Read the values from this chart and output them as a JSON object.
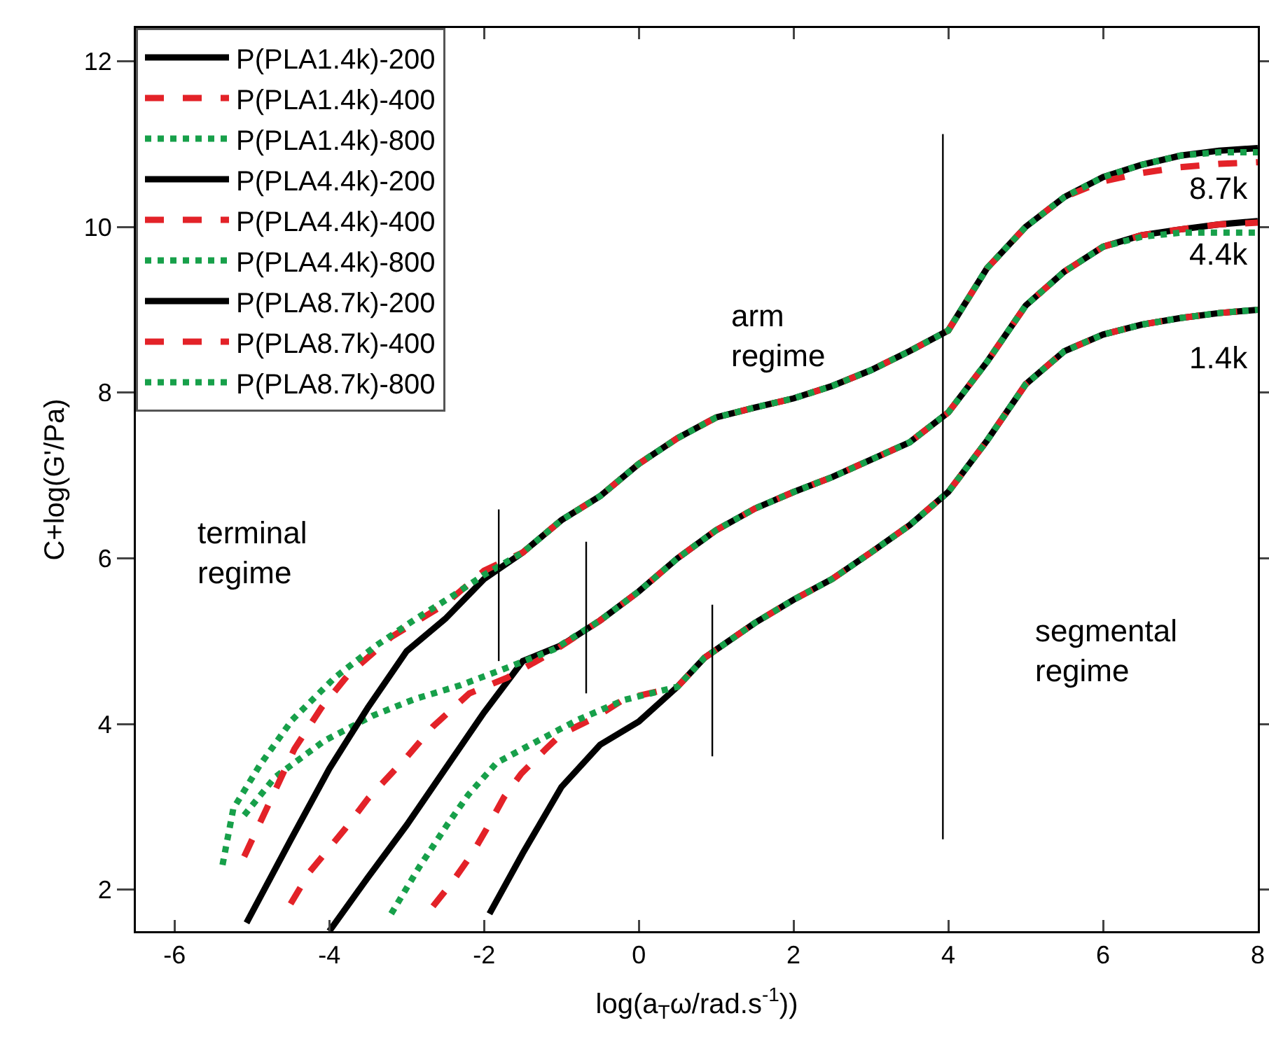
{
  "chart_data": {
    "type": "line",
    "xlabel": "log(a$_{T}$ω/rad.s$^{-1}$))",
    "ylabel": "C+log(G'/Pa)",
    "xlim": [
      -6.5,
      8
    ],
    "ylim": [
      1.5,
      12.4
    ],
    "xticks": [
      -6,
      -4,
      -2,
      0,
      2,
      4,
      6,
      8
    ],
    "yticks": [
      2,
      4,
      6,
      8,
      10,
      12
    ],
    "legend": "top left",
    "series": [
      {
        "name": "P(PLA1.4k)-200",
        "color": "#000000",
        "line_style": "solid",
        "x": [
          -1.93,
          -1.5,
          -1,
          -0.5,
          0,
          0.5,
          0.85,
          1.5,
          2,
          2.5,
          3,
          3.5,
          4,
          4.5,
          5,
          5.5,
          6,
          6.5,
          7,
          7.5,
          8
        ],
        "values": [
          1.71,
          2.44,
          3.24,
          3.75,
          4.03,
          4.45,
          4.8,
          5.22,
          5.5,
          5.75,
          6.07,
          6.4,
          6.8,
          7.42,
          8.1,
          8.5,
          8.7,
          8.82,
          8.9,
          8.96,
          9.0
        ]
      },
      {
        "name": "P(PLA1.4k)-400",
        "color": "#e32228",
        "line_style": "dashed",
        "x": [
          -2.66,
          -2.42,
          -2.15,
          -1.97,
          -1.74,
          -1.52,
          -1.2,
          -1,
          -0.56,
          -0.19,
          0.5,
          0.85,
          1.5,
          2,
          2.5,
          3,
          3.5,
          4,
          4.5,
          5,
          5.5,
          6,
          6.5,
          7,
          7.5,
          8
        ],
        "values": [
          1.8,
          2.08,
          2.44,
          2.73,
          3.12,
          3.4,
          3.7,
          3.88,
          4.08,
          4.3,
          4.45,
          4.8,
          5.22,
          5.5,
          5.75,
          6.07,
          6.4,
          6.8,
          7.42,
          8.1,
          8.5,
          8.7,
          8.82,
          8.9,
          8.96,
          9.0
        ]
      },
      {
        "name": "P(PLA1.4k)-800",
        "color": "#17a04a",
        "line_style": "dotted",
        "x": [
          -3.2,
          -2.84,
          -2.48,
          -2.2,
          -1.84,
          -1.34,
          -0.79,
          -0.19,
          0.5,
          0.85,
          1.5,
          2,
          2.5,
          3,
          3.5,
          4,
          4.5,
          5,
          5.5,
          6,
          6.5,
          7,
          7.5,
          8
        ],
        "values": [
          1.71,
          2.27,
          2.78,
          3.15,
          3.53,
          3.78,
          4.05,
          4.29,
          4.45,
          4.8,
          5.22,
          5.5,
          5.75,
          6.07,
          6.4,
          6.8,
          7.42,
          8.1,
          8.5,
          8.7,
          8.82,
          8.9,
          8.96,
          9.0
        ]
      },
      {
        "name": "P(PLA4.4k)-200",
        "color": "#000000",
        "line_style": "solid",
        "x": [
          -4,
          -3.5,
          -3,
          -2.5,
          -2,
          -1.5,
          -1,
          -0.5,
          0,
          0.5,
          1,
          1.5,
          2,
          2.5,
          3,
          3.5,
          4,
          4.5,
          5,
          5.5,
          6,
          6.5,
          7,
          7.5,
          8
        ],
        "values": [
          1.5,
          2.15,
          2.78,
          3.46,
          4.14,
          4.76,
          4.95,
          5.25,
          5.6,
          6.0,
          6.34,
          6.6,
          6.8,
          6.98,
          7.19,
          7.4,
          7.76,
          8.37,
          9.05,
          9.46,
          9.76,
          9.9,
          9.97,
          10.03,
          10.07
        ]
      },
      {
        "name": "P(PLA4.4k)-400",
        "color": "#e32228",
        "line_style": "dashed",
        "x": [
          -4.5,
          -4.25,
          -3.8,
          -3.5,
          -3,
          -2.66,
          -2.19,
          -1.7,
          -1.15,
          -0.5,
          0,
          0.5,
          1,
          1.5,
          2,
          2.5,
          3,
          3.5,
          4,
          4.5,
          5,
          5.5,
          6,
          6.5,
          7,
          7.5,
          8
        ],
        "values": [
          1.83,
          2.22,
          2.73,
          3.1,
          3.6,
          3.97,
          4.37,
          4.56,
          4.85,
          5.25,
          5.6,
          6.0,
          6.34,
          6.6,
          6.8,
          6.98,
          7.19,
          7.4,
          7.76,
          8.37,
          9.05,
          9.46,
          9.76,
          9.9,
          9.97,
          10.03,
          10.05
        ]
      },
      {
        "name": "P(PLA4.4k)-800",
        "color": "#17a04a",
        "line_style": "dotted",
        "x": [
          -5.1,
          -4.7,
          -4.06,
          -3.44,
          -2.9,
          -2.3,
          -1.7,
          -1.1,
          -0.5,
          0,
          0.5,
          1,
          1.5,
          2,
          2.5,
          3,
          3.5,
          4,
          4.5,
          5,
          5.5,
          6,
          6.5,
          7,
          7.5,
          8
        ],
        "values": [
          2.9,
          3.36,
          3.8,
          4.1,
          4.3,
          4.47,
          4.68,
          4.9,
          5.25,
          5.6,
          6.0,
          6.34,
          6.6,
          6.8,
          6.98,
          7.19,
          7.4,
          7.76,
          8.37,
          9.05,
          9.46,
          9.76,
          9.88,
          9.93,
          9.93,
          9.93
        ]
      },
      {
        "name": "P(PLA8.7k)-200",
        "color": "#000000",
        "line_style": "solid",
        "x": [
          -5.07,
          -4.5,
          -4,
          -3.5,
          -3,
          -2.5,
          -2,
          -1.5,
          -1,
          -0.5,
          0,
          0.5,
          1,
          1.5,
          2,
          2.5,
          3,
          3.5,
          4,
          4.5,
          5,
          5.5,
          6,
          6.5,
          7,
          7.5,
          8
        ],
        "values": [
          1.6,
          2.6,
          3.46,
          4.2,
          4.88,
          5.27,
          5.75,
          6.07,
          6.46,
          6.75,
          7.14,
          7.45,
          7.7,
          7.82,
          7.93,
          8.08,
          8.27,
          8.5,
          8.75,
          9.5,
          10.0,
          10.36,
          10.6,
          10.75,
          10.86,
          10.92,
          10.95
        ]
      },
      {
        "name": "P(PLA8.7k)-400",
        "color": "#e32228",
        "line_style": "dashed",
        "x": [
          -5.1,
          -4.9,
          -4.65,
          -4.45,
          -4.1,
          -3.75,
          -3.2,
          -2.5,
          -2,
          -1.5,
          -1,
          -0.5,
          0,
          0.5,
          1,
          1.5,
          2,
          2.5,
          3,
          3.5,
          4,
          4.5,
          5,
          5.5,
          6,
          6.5,
          7,
          7.5,
          8
        ],
        "values": [
          2.4,
          2.8,
          3.3,
          3.7,
          4.2,
          4.6,
          5.05,
          5.45,
          5.85,
          6.07,
          6.46,
          6.75,
          7.14,
          7.45,
          7.7,
          7.82,
          7.93,
          8.08,
          8.27,
          8.5,
          8.75,
          9.5,
          10.0,
          10.36,
          10.55,
          10.65,
          10.72,
          10.76,
          10.78
        ]
      },
      {
        "name": "P(PLA8.7k)-800",
        "color": "#17a04a",
        "line_style": "dotted",
        "x": [
          -5.38,
          -5.24,
          -4.9,
          -4.48,
          -3.93,
          -3.39,
          -2.88,
          -2.4,
          -2,
          -1.5,
          -1,
          -0.5,
          0,
          0.5,
          1,
          1.5,
          2,
          2.5,
          3,
          3.5,
          4,
          4.5,
          5,
          5.5,
          6,
          6.5,
          7,
          7.5,
          8
        ],
        "values": [
          2.3,
          2.98,
          3.5,
          4.05,
          4.56,
          4.95,
          5.27,
          5.55,
          5.8,
          6.07,
          6.46,
          6.75,
          7.14,
          7.45,
          7.7,
          7.82,
          7.93,
          8.08,
          8.27,
          8.5,
          8.75,
          9.5,
          10.0,
          10.36,
          10.6,
          10.75,
          10.86,
          10.9,
          10.9
        ]
      },
      {
        "color": "#000000",
        "line_style": "solid",
        "x": [
          -1.81,
          -1.81
        ],
        "values": [
          4.76,
          6.59
        ]
      },
      {
        "color": "#000000",
        "line_style": "solid",
        "x": [
          -0.68,
          -0.68
        ],
        "values": [
          4.37,
          6.2
        ]
      },
      {
        "color": "#000000",
        "line_style": "solid",
        "x": [
          0.95,
          0.95
        ],
        "values": [
          3.61,
          5.44
        ]
      },
      {
        "color": "#000000",
        "line_style": "solid",
        "x": [
          3.93,
          3.93
        ],
        "values": [
          2.61,
          11.12
        ]
      }
    ],
    "annotations": [
      "terminal\nregime",
      "arm\nregime",
      "segmental\nregime",
      "8.7k",
      "4.4k",
      "1.4k"
    ]
  }
}
